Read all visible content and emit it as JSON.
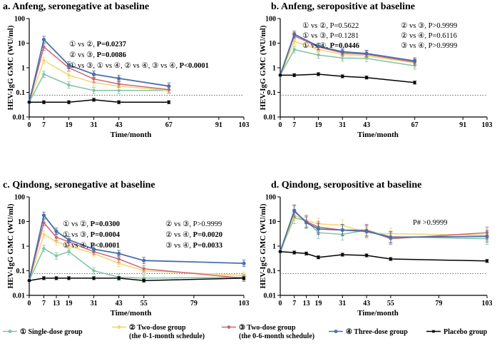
{
  "figure": {
    "legend": [
      {
        "key": "single",
        "label": "① Single-dose group",
        "color": "#7fc4a4"
      },
      {
        "key": "two01",
        "label": "② Two-dose group",
        "sublabel": "(the 0-1-month schedule)",
        "color": "#f5d66b"
      },
      {
        "key": "two06",
        "label": "③ Two-dose group",
        "sublabel": "(the 0-6-month schedule)",
        "color": "#c9677b"
      },
      {
        "key": "three",
        "label": "④ Three-dose group",
        "color": "#4a6fa8"
      },
      {
        "key": "placebo",
        "label": "Placebo group",
        "color": "#000000"
      }
    ]
  },
  "chart_data": [
    {
      "id": "a",
      "type": "line",
      "title": "a. Anfeng, seronegative at baseline",
      "xlabel": "Time/month",
      "ylabel": "HEV-IgG GMC (WU/ml)",
      "yscale": "log",
      "ylim": [
        0.01,
        100
      ],
      "yticks": [
        "0.01",
        "0.1",
        "1",
        "10",
        "100"
      ],
      "xlim": [
        0,
        103
      ],
      "xticks": [
        "0",
        "7",
        "19",
        "31",
        "43",
        "67",
        "91",
        "103"
      ],
      "threshold": 0.077,
      "series": [
        {
          "key": "single",
          "name": "① Single-dose group",
          "x": [
            0,
            7,
            19,
            31,
            43,
            67
          ],
          "y": [
            0.04,
            0.55,
            0.2,
            0.12,
            0.12,
            0.12
          ]
        },
        {
          "key": "two01",
          "name": "② Two-dose group",
          "x": [
            0,
            7,
            19,
            31,
            43,
            67
          ],
          "y": [
            0.04,
            2.0,
            0.5,
            0.25,
            0.18,
            0.12
          ]
        },
        {
          "key": "two06",
          "name": "③ Two-dose group",
          "x": [
            0,
            7,
            19,
            31,
            43,
            67
          ],
          "y": [
            0.04,
            7.0,
            1.0,
            0.35,
            0.22,
            0.13
          ]
        },
        {
          "key": "three",
          "name": "④ Three-dose group",
          "x": [
            0,
            7,
            19,
            31,
            43,
            67
          ],
          "y": [
            0.04,
            14.0,
            1.3,
            0.55,
            0.37,
            0.18
          ]
        },
        {
          "key": "placebo",
          "name": "Placebo group",
          "x": [
            0,
            7,
            19,
            31,
            43,
            67
          ],
          "y": [
            0.04,
            0.04,
            0.04,
            0.05,
            0.04,
            0.04
          ]
        }
      ],
      "annotations": [
        {
          "plain": "① vs ②, ",
          "bold": "P=0.0237"
        },
        {
          "plain": "② vs ③, ",
          "bold": "P=0.0086"
        },
        {
          "plain": "① vs ③, ① vs ④, ② vs ④, ③ vs ④, ",
          "bold": "P<0.0001"
        }
      ]
    },
    {
      "id": "b",
      "type": "line",
      "title": "b. Anfeng, seropositive at baseline",
      "xlabel": "Time/month",
      "ylabel": "HEV-IgG GMC (WU/ml)",
      "yscale": "log",
      "ylim": [
        0.01,
        100
      ],
      "yticks": [
        "0.01",
        "0.1",
        "1",
        "10",
        "100"
      ],
      "xlim": [
        0,
        103
      ],
      "xticks": [
        "0",
        "7",
        "19",
        "31",
        "43",
        "67",
        "91",
        "103"
      ],
      "threshold": 0.077,
      "series": [
        {
          "key": "single",
          "name": "① Single-dose group",
          "x": [
            0,
            7,
            19,
            31,
            43,
            67
          ],
          "y": [
            0.5,
            5.5,
            3.3,
            2.5,
            2.4,
            1.2
          ]
        },
        {
          "key": "two01",
          "name": "② Two-dose group",
          "x": [
            0,
            7,
            19,
            31,
            43,
            67
          ],
          "y": [
            0.5,
            12.0,
            5.5,
            3.5,
            3.0,
            1.6
          ]
        },
        {
          "key": "two06",
          "name": "③ Two-dose group",
          "x": [
            0,
            7,
            19,
            31,
            43,
            67
          ],
          "y": [
            0.5,
            20.0,
            7.0,
            4.0,
            3.5,
            1.7
          ]
        },
        {
          "key": "three",
          "name": "④ Three-dose group",
          "x": [
            0,
            7,
            19,
            31,
            43,
            67
          ],
          "y": [
            0.5,
            23.0,
            7.5,
            4.5,
            3.8,
            1.9
          ]
        },
        {
          "key": "placebo",
          "name": "Placebo group",
          "x": [
            0,
            7,
            19,
            31,
            43,
            67
          ],
          "y": [
            0.5,
            0.5,
            0.55,
            0.45,
            0.4,
            0.25
          ]
        }
      ],
      "annotations": [
        {
          "parts": [
            {
              "plain": "① vs ②, P=0.5622"
            },
            {
              "plain": "② vs ③, P>0.9999"
            }
          ]
        },
        {
          "parts": [
            {
              "plain": "① vs ③, P=0.1281"
            },
            {
              "plain": "② vs ④, P=0.6116"
            }
          ]
        },
        {
          "parts": [
            {
              "plain": "① vs ④, ",
              "bold": "P=0.0446"
            },
            {
              "plain": "③ vs ④, P>0.9999"
            }
          ]
        }
      ]
    },
    {
      "id": "c",
      "type": "line",
      "title": "c. Qindong, seronegative at baseline",
      "xlabel": "Time/month",
      "ylabel": "HEV-IgG GMC (WU/ml)",
      "yscale": "log",
      "ylim": [
        0.01,
        100
      ],
      "yticks": [
        "0.01",
        "0.1",
        "1",
        "10",
        "100"
      ],
      "xlim": [
        0,
        103
      ],
      "xticks": [
        "0",
        "7",
        "13",
        "19",
        "31",
        "43",
        "55",
        "79",
        "103"
      ],
      "threshold": 0.077,
      "series": [
        {
          "key": "single",
          "name": "① Single-dose group",
          "x": [
            0,
            7,
            13,
            19,
            31,
            43,
            55,
            103
          ],
          "y": [
            0.04,
            0.8,
            0.4,
            0.6,
            0.1,
            0.055,
            0.05,
            0.055
          ]
        },
        {
          "key": "two01",
          "name": "② Two-dose group",
          "x": [
            0,
            7,
            13,
            19,
            31,
            43,
            55,
            103
          ],
          "y": [
            0.04,
            3.0,
            1.5,
            1.0,
            0.5,
            0.2,
            0.1,
            0.065
          ]
        },
        {
          "key": "two06",
          "name": "③ Two-dose group",
          "x": [
            0,
            7,
            13,
            19,
            31,
            43,
            55,
            103
          ],
          "y": [
            0.04,
            9.0,
            2.3,
            1.5,
            0.6,
            0.3,
            0.12,
            0.05
          ]
        },
        {
          "key": "three",
          "name": "④ Three-dose group",
          "x": [
            0,
            7,
            13,
            19,
            31,
            43,
            55,
            103
          ],
          "y": [
            0.04,
            18.0,
            4.0,
            1.8,
            0.75,
            0.5,
            0.26,
            0.2
          ]
        },
        {
          "key": "placebo",
          "name": "Placebo group",
          "x": [
            0,
            7,
            13,
            19,
            31,
            43,
            55,
            103
          ],
          "y": [
            0.04,
            0.05,
            0.05,
            0.05,
            0.05,
            0.05,
            0.04,
            0.05
          ]
        }
      ],
      "annotations": [
        {
          "parts": [
            {
              "plain": "① vs ②, ",
              "bold": "P=0.0300"
            },
            {
              "plain": "② vs ③, P>0.9999"
            }
          ]
        },
        {
          "parts": [
            {
              "plain": "① vs ③, ",
              "bold": "P=0.0004"
            },
            {
              "plain": "② vs ④, ",
              "bold": "P=0.0020"
            }
          ]
        },
        {
          "parts": [
            {
              "plain": "① vs ④, ",
              "bold": "P<0.0001"
            },
            {
              "plain": "③ vs ④, ",
              "bold": "P=0.0033"
            }
          ]
        }
      ]
    },
    {
      "id": "d",
      "type": "line",
      "title": "d. Qindong, seropositive at baseline",
      "xlabel": "Time/month",
      "ylabel": "HEV-IgG GMC (WU/ml)",
      "yscale": "log",
      "ylim": [
        0.01,
        100
      ],
      "yticks": [
        "0.01",
        "0.1",
        "1",
        "10",
        "100"
      ],
      "xlim": [
        0,
        103
      ],
      "xticks": [
        "0",
        "7",
        "13",
        "19",
        "31",
        "43",
        "55",
        "79",
        "103"
      ],
      "threshold": 0.077,
      "series": [
        {
          "key": "single",
          "name": "① Single-dose group",
          "x": [
            0,
            7,
            13,
            19,
            31,
            43,
            55,
            103
          ],
          "y": [
            0.6,
            14.0,
            11.0,
            3.5,
            3.0,
            4.5,
            2.4,
            2.0
          ]
        },
        {
          "key": "two01",
          "name": "② Two-dose group",
          "x": [
            0,
            7,
            13,
            19,
            31,
            43,
            55,
            103
          ],
          "y": [
            0.6,
            18.0,
            11.0,
            8.0,
            7.0,
            3.5,
            3.2,
            2.8
          ]
        },
        {
          "key": "two06",
          "name": "③ Two-dose group",
          "x": [
            0,
            7,
            13,
            19,
            31,
            43,
            55,
            103
          ],
          "y": [
            0.6,
            25.0,
            10.0,
            6.0,
            4.5,
            4.5,
            2.0,
            3.5
          ]
        },
        {
          "key": "three",
          "name": "④ Three-dose group",
          "x": [
            0,
            7,
            13,
            19,
            31,
            43,
            55,
            103
          ],
          "y": [
            0.6,
            28.0,
            9.0,
            5.0,
            4.5,
            4.0,
            2.3,
            2.5
          ]
        },
        {
          "key": "placebo",
          "name": "Placebo group",
          "x": [
            0,
            7,
            13,
            19,
            31,
            43,
            55,
            103
          ],
          "y": [
            0.6,
            0.55,
            0.5,
            0.35,
            0.45,
            0.42,
            0.3,
            0.25
          ]
        }
      ],
      "annotations": [
        {
          "plain": "P# >0.9999"
        }
      ]
    }
  ]
}
